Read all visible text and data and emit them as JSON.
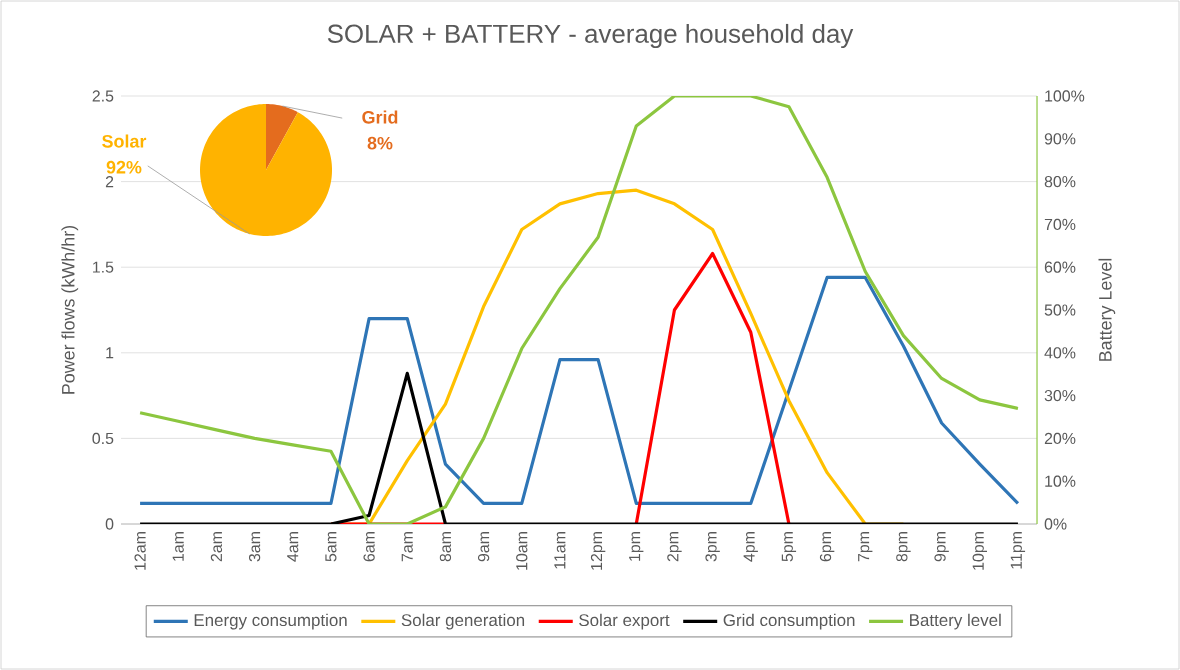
{
  "chart_data": [
    {
      "type": "line",
      "title": "SOLAR + BATTERY - average household day",
      "ylabel": "Power flows (kWh/hr)",
      "y2label": "Battery Level",
      "categories": [
        "12am",
        "1am",
        "2am",
        "3am",
        "4am",
        "5am",
        "6am",
        "7am",
        "8am",
        "9am",
        "10am",
        "11am",
        "12pm",
        "1pm",
        "2pm",
        "3pm",
        "4pm",
        "5pm",
        "6pm",
        "7pm",
        "8pm",
        "9pm",
        "10pm",
        "11pm"
      ],
      "series": [
        {
          "name": "Energy consumption",
          "color": "#2e75b6",
          "values": [
            0.12,
            0.12,
            0.12,
            0.12,
            0.12,
            0.12,
            1.2,
            1.2,
            0.35,
            0.12,
            0.12,
            0.96,
            0.96,
            0.12,
            0.12,
            0.12,
            0.12,
            0.78,
            1.44,
            1.44,
            1.04,
            0.59,
            0.35,
            0.12
          ]
        },
        {
          "name": "Solar generation",
          "color": "#ffc000",
          "values": [
            null,
            null,
            null,
            null,
            null,
            0,
            0,
            0.37,
            0.7,
            1.27,
            1.72,
            1.87,
            1.93,
            1.95,
            1.87,
            1.72,
            1.23,
            0.72,
            0.3,
            0,
            0,
            null,
            null,
            null
          ]
        },
        {
          "name": "Solar export",
          "color": "#ff0000",
          "values": [
            null,
            null,
            null,
            null,
            null,
            0,
            0,
            0,
            0,
            null,
            null,
            null,
            null,
            0,
            1.25,
            1.58,
            1.12,
            0,
            null,
            null,
            null,
            null,
            null,
            null
          ]
        },
        {
          "name": "Grid consumption",
          "color": "#000000",
          "values": [
            0,
            0,
            0,
            0,
            0,
            0,
            0.05,
            0.88,
            0,
            0,
            0,
            0,
            0,
            0,
            0,
            0,
            0,
            0,
            0,
            0,
            0,
            0,
            0,
            0
          ]
        },
        {
          "name": "Battery level",
          "color": "#8cc63f",
          "axis": "y2",
          "values": [
            26,
            24,
            22,
            20,
            18.5,
            17,
            0,
            0,
            4,
            20,
            41,
            55,
            67,
            93,
            100,
            100,
            100,
            97.5,
            81,
            59,
            44,
            34,
            29,
            27
          ]
        }
      ],
      "ylim": [
        0,
        2.5
      ],
      "yticks": [
        0,
        0.5,
        1,
        1.5,
        2,
        2.5
      ],
      "y2lim": [
        0,
        100
      ],
      "y2ticks": [
        {
          "value": 0,
          "label": "0%"
        },
        {
          "value": 10,
          "label": "10%"
        },
        {
          "value": 20,
          "label": "20%"
        },
        {
          "value": 30,
          "label": "30%"
        },
        {
          "value": 40,
          "label": "40%"
        },
        {
          "value": 50,
          "label": "50%"
        },
        {
          "value": 60,
          "label": "60%"
        },
        {
          "value": 70,
          "label": "70%"
        },
        {
          "value": 80,
          "label": "80%"
        },
        {
          "value": 90,
          "label": "90%"
        },
        {
          "value": 100,
          "label": "100%"
        }
      ],
      "grid": "y",
      "legend": "bottom",
      "line_style": "solid"
    },
    {
      "type": "pie",
      "categories": [
        "Grid",
        "Solar"
      ],
      "values": [
        8,
        92
      ],
      "colors": [
        "#e46c1e",
        "#ffb300"
      ],
      "value_labels": [
        "8%",
        "92%"
      ]
    }
  ]
}
